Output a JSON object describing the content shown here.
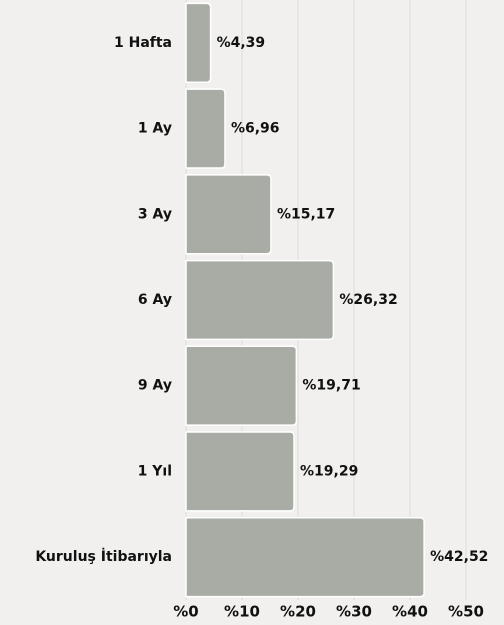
{
  "chart_data": {
    "type": "bar",
    "orientation": "horizontal",
    "categories": [
      "1 Hafta",
      "1 Ay",
      "3 Ay",
      "6 Ay",
      "9 Ay",
      "1 Yıl",
      "Kuruluş İtibarıyla"
    ],
    "values": [
      4.39,
      6.96,
      15.17,
      26.32,
      19.71,
      19.29,
      42.52
    ],
    "value_labels": [
      "%4,39",
      "%6,96",
      "%15,17",
      "%26,32",
      "%19,71",
      "%19,29",
      "%42,52"
    ],
    "color": "#a8aca5",
    "xlim": [
      0,
      50
    ],
    "xticks": [
      {
        "value": 0,
        "label": "%0"
      },
      {
        "value": 10,
        "label": "%10"
      },
      {
        "value": 20,
        "label": "%20"
      },
      {
        "value": 30,
        "label": "%30"
      },
      {
        "value": 40,
        "label": "%40"
      },
      {
        "value": 50,
        "label": "%50"
      }
    ],
    "grid": true
  }
}
